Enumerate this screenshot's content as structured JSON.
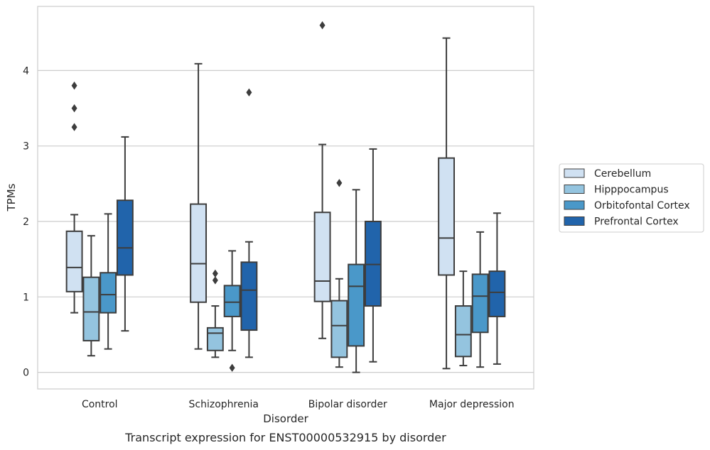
{
  "chart_data": {
    "type": "box",
    "title": "Transcript expression for ENST00000532915 by disorder",
    "xlabel": "Disorder",
    "ylabel": "TPMs",
    "ylim": [
      -0.22,
      4.85
    ],
    "yticks": [
      0,
      1,
      2,
      3,
      4
    ],
    "grid": "horizontal",
    "legend_position": "right",
    "categories": [
      "Control",
      "Schizophrenia",
      "Bipolar disorder",
      "Major depression"
    ],
    "series": [
      {
        "name": "Cerebellum",
        "color": "#d0e1f2",
        "boxes": [
          {
            "whislo": 0.79,
            "q1": 1.07,
            "med": 1.39,
            "q3": 1.87,
            "whishi": 2.09,
            "fliers": [
              3.25,
              3.5,
              3.8
            ]
          },
          {
            "whislo": 0.31,
            "q1": 0.93,
            "med": 1.44,
            "q3": 2.23,
            "whishi": 4.09,
            "fliers": []
          },
          {
            "whislo": 0.45,
            "q1": 0.94,
            "med": 1.21,
            "q3": 2.12,
            "whishi": 3.02,
            "fliers": [
              4.6
            ]
          },
          {
            "whislo": 0.05,
            "q1": 1.29,
            "med": 1.78,
            "q3": 2.84,
            "whishi": 4.43,
            "fliers": []
          }
        ]
      },
      {
        "name": "Hipppocampus",
        "color": "#94c4df",
        "boxes": [
          {
            "whislo": 0.22,
            "q1": 0.42,
            "med": 0.8,
            "q3": 1.26,
            "whishi": 1.81,
            "fliers": []
          },
          {
            "whislo": 0.2,
            "q1": 0.29,
            "med": 0.52,
            "q3": 0.59,
            "whishi": 0.88,
            "fliers": [
              1.22,
              1.31
            ]
          },
          {
            "whislo": 0.07,
            "q1": 0.2,
            "med": 0.62,
            "q3": 0.95,
            "whishi": 1.24,
            "fliers": [
              2.51
            ]
          },
          {
            "whislo": 0.09,
            "q1": 0.21,
            "med": 0.5,
            "q3": 0.88,
            "whishi": 1.34,
            "fliers": []
          }
        ]
      },
      {
        "name": "Orbitofontal Cortex",
        "color": "#4a98c9",
        "boxes": [
          {
            "whislo": 0.31,
            "q1": 0.79,
            "med": 1.03,
            "q3": 1.32,
            "whishi": 2.1,
            "fliers": []
          },
          {
            "whislo": 0.29,
            "q1": 0.74,
            "med": 0.93,
            "q3": 1.15,
            "whishi": 1.61,
            "fliers": [
              0.06
            ]
          },
          {
            "whislo": 0.0,
            "q1": 0.35,
            "med": 1.14,
            "q3": 1.43,
            "whishi": 2.42,
            "fliers": []
          },
          {
            "whislo": 0.07,
            "q1": 0.53,
            "med": 1.01,
            "q3": 1.3,
            "whishi": 1.86,
            "fliers": []
          }
        ]
      },
      {
        "name": "Prefrontal Cortex",
        "color": "#2164ab",
        "boxes": [
          {
            "whislo": 0.55,
            "q1": 1.29,
            "med": 1.65,
            "q3": 2.28,
            "whishi": 3.12,
            "fliers": []
          },
          {
            "whislo": 0.2,
            "q1": 0.56,
            "med": 1.09,
            "q3": 1.46,
            "whishi": 1.73,
            "fliers": [
              3.71
            ]
          },
          {
            "whislo": 0.14,
            "q1": 0.88,
            "med": 1.43,
            "q3": 2.0,
            "whishi": 2.96,
            "fliers": []
          },
          {
            "whislo": 0.11,
            "q1": 0.74,
            "med": 1.06,
            "q3": 1.34,
            "whishi": 2.11,
            "fliers": []
          }
        ]
      }
    ]
  }
}
